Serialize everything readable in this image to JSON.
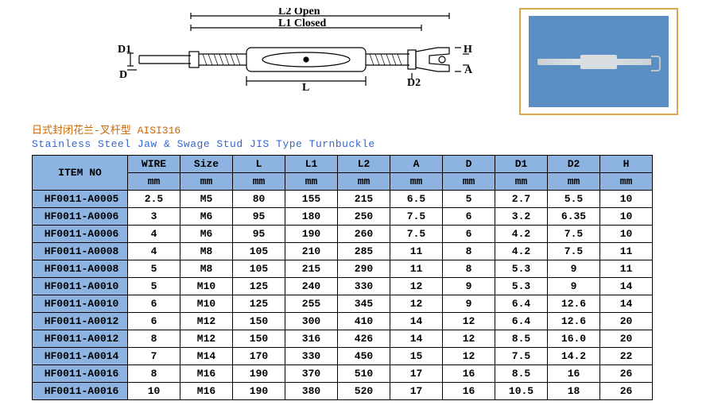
{
  "diagram": {
    "l2_label": "L2 Open",
    "l1_label": "L1 Closed",
    "d1_label": "D1",
    "d_label": "D",
    "l_label": "L",
    "d2_label": "D2",
    "h_label": "H",
    "a_label": "A"
  },
  "title_cn": "日式封闭花兰-叉杆型  AISI316",
  "title_en": "Stainless Steel Jaw & Swage Stud JIS Type Turnbuckle",
  "table": {
    "header_item": "ITEM NO",
    "headers": [
      "WIRE",
      "Size",
      "L",
      "L1",
      "L2",
      "A",
      "D",
      "D1",
      "D2",
      "H"
    ],
    "unit": "mm",
    "rows": [
      {
        "item": "HF0011-A0005",
        "cells": [
          "2.5",
          "M5",
          "80",
          "155",
          "215",
          "6.5",
          "5",
          "2.7",
          "5.5",
          "10"
        ]
      },
      {
        "item": "HF0011-A0006",
        "cells": [
          "3",
          "M6",
          "95",
          "180",
          "250",
          "7.5",
          "6",
          "3.2",
          "6.35",
          "10"
        ]
      },
      {
        "item": "HF0011-A0006",
        "cells": [
          "4",
          "M6",
          "95",
          "190",
          "260",
          "7.5",
          "6",
          "4.2",
          "7.5",
          "10"
        ]
      },
      {
        "item": "HF0011-A0008",
        "cells": [
          "4",
          "M8",
          "105",
          "210",
          "285",
          "11",
          "8",
          "4.2",
          "7.5",
          "11"
        ]
      },
      {
        "item": "HF0011-A0008",
        "cells": [
          "5",
          "M8",
          "105",
          "215",
          "290",
          "11",
          "8",
          "5.3",
          "9",
          "11"
        ]
      },
      {
        "item": "HF0011-A0010",
        "cells": [
          "5",
          "M10",
          "125",
          "240",
          "330",
          "12",
          "9",
          "5.3",
          "9",
          "14"
        ]
      },
      {
        "item": "HF0011-A0010",
        "cells": [
          "6",
          "M10",
          "125",
          "255",
          "345",
          "12",
          "9",
          "6.4",
          "12.6",
          "14"
        ]
      },
      {
        "item": "HF0011-A0012",
        "cells": [
          "6",
          "M12",
          "150",
          "300",
          "410",
          "14",
          "12",
          "6.4",
          "12.6",
          "20"
        ]
      },
      {
        "item": "HF0011-A0012",
        "cells": [
          "8",
          "M12",
          "150",
          "316",
          "426",
          "14",
          "12",
          "8.5",
          "16.0",
          "20"
        ]
      },
      {
        "item": "HF0011-A0014",
        "cells": [
          "7",
          "M14",
          "170",
          "330",
          "450",
          "15",
          "12",
          "7.5",
          "14.2",
          "22"
        ]
      },
      {
        "item": "HF0011-A0016",
        "cells": [
          "8",
          "M16",
          "190",
          "370",
          "510",
          "17",
          "16",
          "8.5",
          "16",
          "26"
        ]
      },
      {
        "item": "HF0011-A0016",
        "cells": [
          "10",
          "M16",
          "190",
          "380",
          "520",
          "17",
          "16",
          "10.5",
          "18",
          "26"
        ]
      }
    ]
  },
  "colors": {
    "header_bg": "#8db4e0",
    "border": "#000000",
    "title_cn": "#cc6600",
    "title_en": "#3366cc",
    "photo_border": "#d9a84e",
    "photo_bg": "#5b8fc4"
  }
}
